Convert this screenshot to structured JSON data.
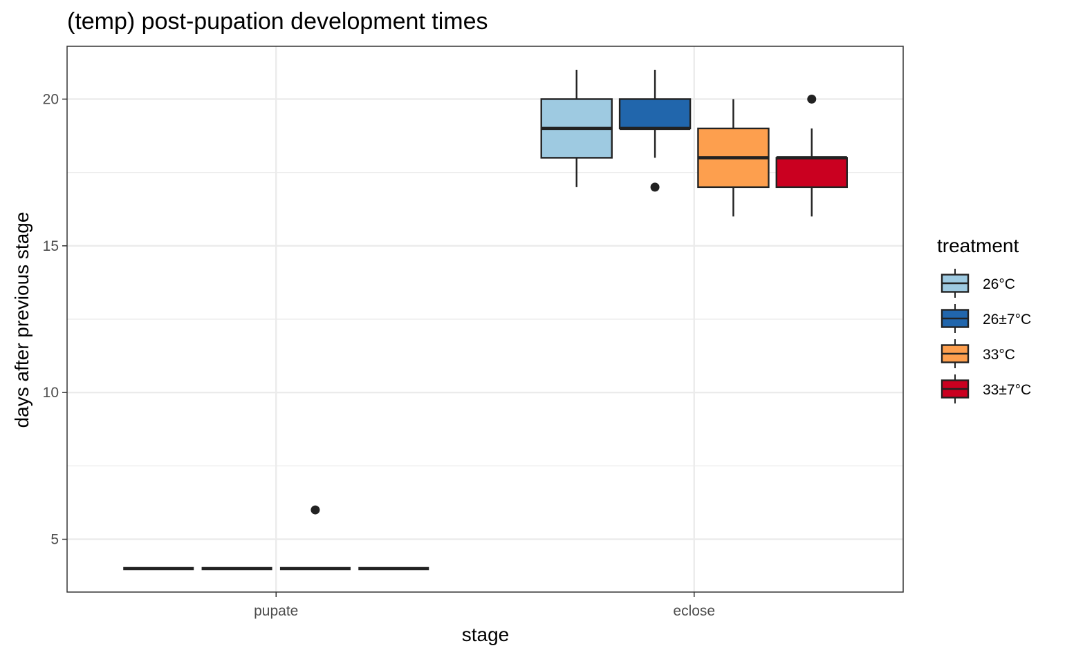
{
  "chart_data": {
    "type": "boxplot",
    "title": "(temp) post-pupation development times",
    "xlabel": "stage",
    "ylabel": "days after previous stage",
    "categories": [
      "pupate",
      "eclose"
    ],
    "yticks": [
      5,
      10,
      15,
      20
    ],
    "ylim": [
      3.2,
      21.8
    ],
    "grid": true,
    "legend": {
      "title": "treatment",
      "position": "right",
      "entries": [
        "26°C",
        "26±7°C",
        "33°C",
        "33±7°C"
      ]
    },
    "series": [
      {
        "name": "26°C",
        "color": "#9ecae1",
        "boxes": [
          {
            "category": "pupate",
            "min": 4,
            "q1": 4,
            "median": 4,
            "q3": 4,
            "max": 4,
            "outliers": []
          },
          {
            "category": "eclose",
            "min": 17,
            "q1": 18,
            "median": 19,
            "q3": 20,
            "max": 21,
            "outliers": []
          }
        ]
      },
      {
        "name": "26±7°C",
        "color": "#2166ac",
        "boxes": [
          {
            "category": "pupate",
            "min": 4,
            "q1": 4,
            "median": 4,
            "q3": 4,
            "max": 4,
            "outliers": []
          },
          {
            "category": "eclose",
            "min": 18,
            "q1": 19,
            "median": 19,
            "q3": 20,
            "max": 21,
            "outliers": [
              17
            ]
          }
        ]
      },
      {
        "name": "33°C",
        "color": "#fd9f4e",
        "boxes": [
          {
            "category": "pupate",
            "min": 4,
            "q1": 4,
            "median": 4,
            "q3": 4,
            "max": 4,
            "outliers": [
              6
            ]
          },
          {
            "category": "eclose",
            "min": 16,
            "q1": 17,
            "median": 18,
            "q3": 19,
            "max": 20,
            "outliers": []
          }
        ]
      },
      {
        "name": "33±7°C",
        "color": "#ca0020",
        "boxes": [
          {
            "category": "pupate",
            "min": 4,
            "q1": 4,
            "median": 4,
            "q3": 4,
            "max": 4,
            "outliers": []
          },
          {
            "category": "eclose",
            "min": 16,
            "q1": 17,
            "median": 18,
            "q3": 18,
            "max": 19,
            "outliers": [
              20
            ]
          }
        ]
      }
    ]
  }
}
